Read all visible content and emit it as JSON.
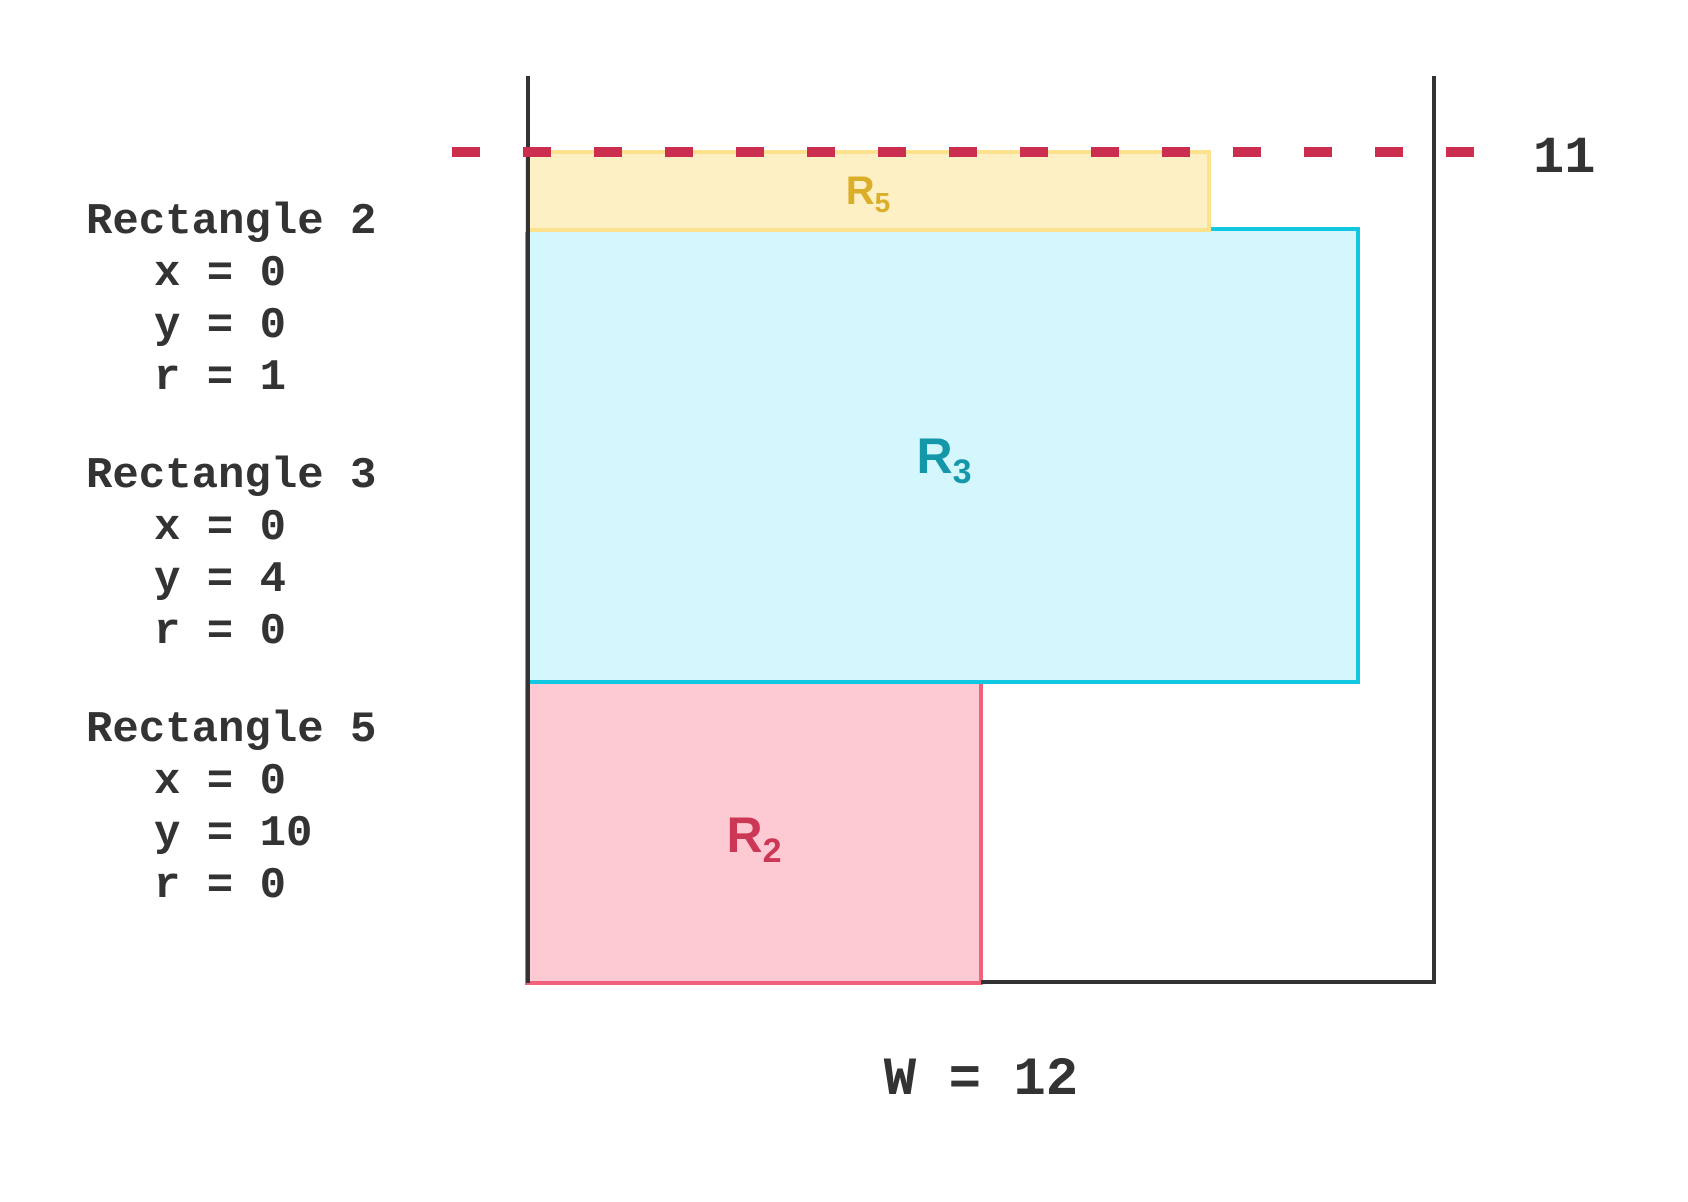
{
  "rectangles_info": [
    {
      "title": "Rectangle 2",
      "lines": [
        "x = 0",
        "y = 0",
        "r = 1"
      ]
    },
    {
      "title": "Rectangle 3",
      "lines": [
        "x = 0",
        "y = 4",
        "r = 0"
      ]
    },
    {
      "title": "Rectangle 5",
      "lines": [
        "x = 0",
        "y = 10",
        "r = 0"
      ]
    }
  ],
  "diagram": {
    "height_marker": "11",
    "width_label": "W = 12",
    "rect_labels": {
      "r5": {
        "main": "R",
        "sub": "5"
      },
      "r3": {
        "main": "R",
        "sub": "3"
      },
      "r2": {
        "main": "R",
        "sub": "2"
      }
    }
  },
  "colors": {
    "text": "#333333",
    "container": "#333333",
    "dashed_line": "#CC2E4F",
    "r5_fill": "#FEF0C5",
    "r5_stroke": "#FCE28E",
    "r5_label": "#DBAE2A",
    "r3_fill": "#D3F7FC",
    "r3_stroke": "#12C8E1",
    "r3_label": "#1497A8",
    "r2_fill": "#FDC9D3",
    "r2_stroke": "#F0617C",
    "r2_label": "#CC3755"
  }
}
